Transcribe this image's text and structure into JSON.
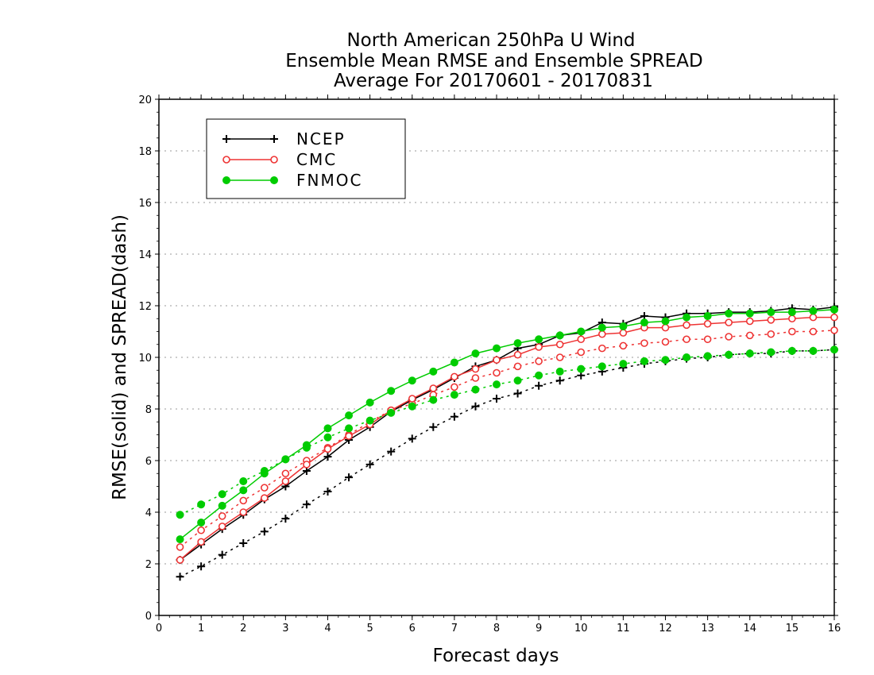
{
  "chart_data": {
    "type": "line",
    "title": [
      "North American 250hPa U Wind",
      "Ensemble Mean RMSE and Ensemble SPREAD",
      "Average For 20170601 - 20170831"
    ],
    "xlabel": "Forecast days",
    "ylabel": "RMSE(solid) and SPREAD(dash)",
    "xlim": [
      0,
      16
    ],
    "ylim": [
      0,
      20
    ],
    "xticks": [
      0,
      1,
      2,
      3,
      4,
      5,
      6,
      7,
      8,
      9,
      10,
      11,
      12,
      13,
      14,
      15,
      16
    ],
    "yticks": [
      0,
      2,
      4,
      6,
      8,
      10,
      12,
      14,
      16,
      18,
      20
    ],
    "grid": "horizontal dotted",
    "legend_position": "top-left",
    "x": [
      0.5,
      1,
      1.5,
      2,
      2.5,
      3,
      3.5,
      4,
      4.5,
      5,
      5.5,
      6,
      6.5,
      7,
      7.5,
      8,
      8.5,
      9,
      9.5,
      10,
      10.5,
      11,
      11.5,
      12,
      12.5,
      13,
      13.5,
      14,
      14.5,
      15,
      15.5,
      16
    ],
    "series": [
      {
        "name": "NCEP",
        "color": "#000000",
        "marker": "plus",
        "rmse": [
          2.15,
          2.75,
          3.35,
          3.9,
          4.5,
          5.0,
          5.6,
          6.15,
          6.8,
          7.3,
          7.9,
          8.35,
          8.75,
          9.2,
          9.65,
          9.9,
          10.35,
          10.5,
          10.85,
          10.95,
          11.35,
          11.3,
          11.6,
          11.55,
          11.7,
          11.7,
          11.75,
          11.75,
          11.8,
          11.9,
          11.85,
          11.95
        ],
        "spread": [
          1.5,
          1.9,
          2.35,
          2.8,
          3.25,
          3.75,
          4.3,
          4.8,
          5.35,
          5.85,
          6.35,
          6.85,
          7.3,
          7.7,
          8.1,
          8.4,
          8.6,
          8.9,
          9.1,
          9.3,
          9.45,
          9.6,
          9.75,
          9.85,
          9.95,
          10.0,
          10.1,
          10.15,
          10.15,
          10.25,
          10.25,
          10.3
        ]
      },
      {
        "name": "CMC",
        "color": "#ee3333",
        "marker": "open-circle",
        "rmse": [
          2.15,
          2.85,
          3.45,
          4.0,
          4.55,
          5.2,
          5.85,
          6.45,
          6.95,
          7.4,
          7.95,
          8.4,
          8.8,
          9.25,
          9.55,
          9.9,
          10.1,
          10.4,
          10.5,
          10.7,
          10.9,
          10.95,
          11.15,
          11.15,
          11.25,
          11.3,
          11.35,
          11.4,
          11.45,
          11.5,
          11.55,
          11.55
        ],
        "spread": [
          2.65,
          3.3,
          3.85,
          4.45,
          4.95,
          5.5,
          6.0,
          6.5,
          7.0,
          7.5,
          7.95,
          8.2,
          8.55,
          8.85,
          9.2,
          9.4,
          9.65,
          9.85,
          10.0,
          10.2,
          10.35,
          10.45,
          10.55,
          10.6,
          10.7,
          10.7,
          10.8,
          10.85,
          10.9,
          11.0,
          11.0,
          11.05
        ]
      },
      {
        "name": "FNMOC",
        "color": "#00cc00",
        "marker": "filled-circle",
        "rmse": [
          2.95,
          3.6,
          4.25,
          4.85,
          5.5,
          6.05,
          6.6,
          7.25,
          7.75,
          8.25,
          8.7,
          9.1,
          9.45,
          9.8,
          10.15,
          10.35,
          10.55,
          10.7,
          10.85,
          11.0,
          11.15,
          11.2,
          11.35,
          11.4,
          11.55,
          11.6,
          11.7,
          11.7,
          11.75,
          11.75,
          11.8,
          11.85
        ],
        "spread": [
          3.9,
          4.3,
          4.7,
          5.2,
          5.6,
          6.05,
          6.5,
          6.9,
          7.25,
          7.55,
          7.85,
          8.1,
          8.35,
          8.55,
          8.75,
          8.95,
          9.1,
          9.3,
          9.45,
          9.55,
          9.65,
          9.75,
          9.85,
          9.9,
          10.0,
          10.05,
          10.1,
          10.15,
          10.2,
          10.25,
          10.25,
          10.3
        ]
      }
    ]
  }
}
